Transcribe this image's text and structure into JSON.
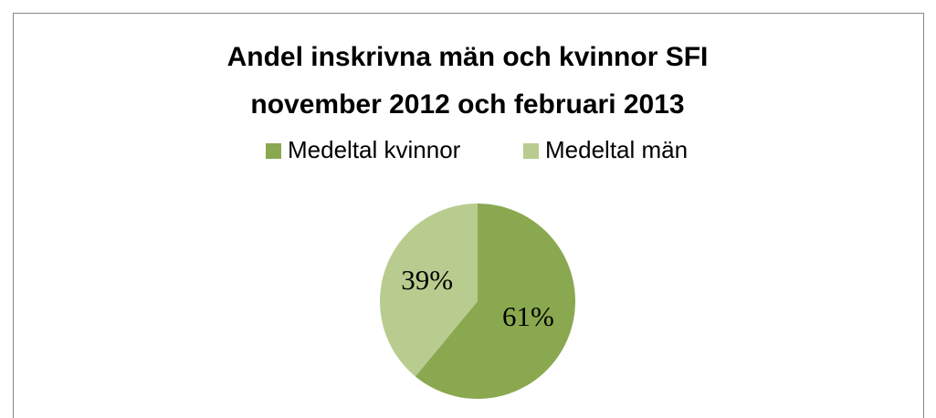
{
  "chart_data": {
    "type": "pie",
    "title": [
      "Andel inskrivna män och kvinnor SFI",
      "november 2012 och februari 2013"
    ],
    "categories": [
      "Medeltal kvinnor",
      "Medeltal män"
    ],
    "values": [
      61,
      39
    ],
    "value_labels": [
      "61%",
      "39%"
    ],
    "colors": [
      "#8aa84f",
      "#b9cc8f"
    ],
    "legend": "top"
  }
}
